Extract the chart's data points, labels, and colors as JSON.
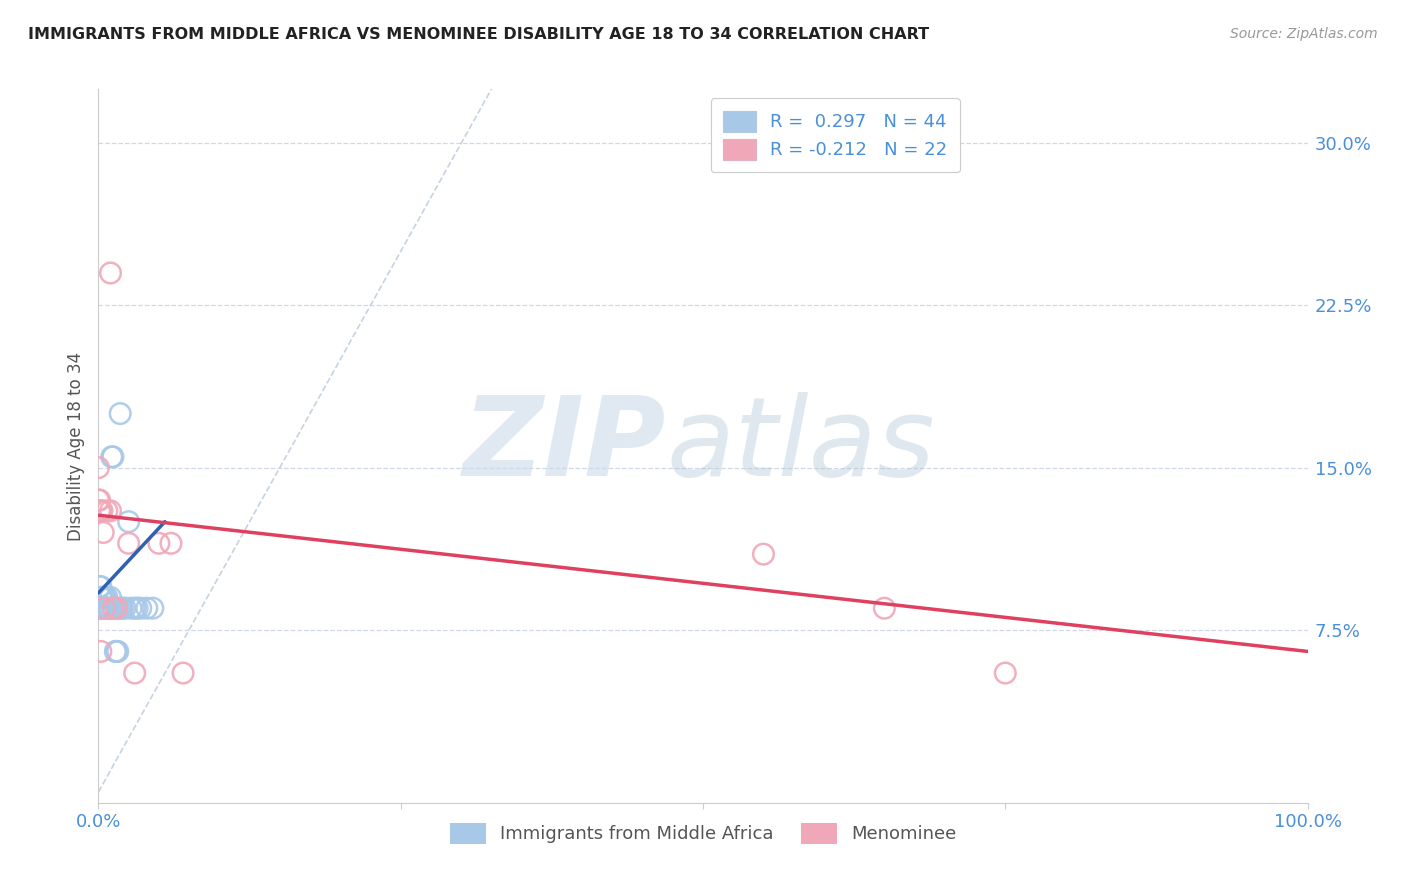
{
  "title": "IMMIGRANTS FROM MIDDLE AFRICA VS MENOMINEE DISABILITY AGE 18 TO 34 CORRELATION CHART",
  "source": "Source: ZipAtlas.com",
  "ylabel": "Disability Age 18 to 34",
  "xlim": [
    0.0,
    1.0
  ],
  "ylim": [
    0.0,
    0.32
  ],
  "y_ticks": [
    0.075,
    0.15,
    0.225,
    0.3
  ],
  "y_tick_labels": [
    "7.5%",
    "15.0%",
    "22.5%",
    "30.0%"
  ],
  "blue_color": "#a8c8e8",
  "pink_color": "#f0a8b8",
  "blue_line_color": "#3060b0",
  "pink_line_color": "#e04060",
  "diag_line_color": "#b8c8d8",
  "blue_scatter_x": [
    0.002,
    0.002,
    0.003,
    0.003,
    0.004,
    0.004,
    0.005,
    0.005,
    0.006,
    0.006,
    0.007,
    0.008,
    0.009,
    0.01,
    0.01,
    0.011,
    0.012,
    0.013,
    0.014,
    0.015,
    0.016,
    0.017,
    0.018,
    0.019,
    0.02,
    0.022,
    0.025,
    0.027,
    0.03,
    0.032,
    0.035,
    0.04,
    0.001,
    0.001,
    0.002,
    0.003,
    0.003,
    0.004,
    0.005,
    0.006,
    0.007,
    0.0,
    0.0,
    0.045
  ],
  "blue_scatter_y": [
    0.09,
    0.085,
    0.085,
    0.09,
    0.085,
    0.09,
    0.085,
    0.09,
    0.085,
    0.09,
    0.09,
    0.085,
    0.085,
    0.085,
    0.09,
    0.155,
    0.155,
    0.085,
    0.065,
    0.065,
    0.065,
    0.085,
    0.175,
    0.085,
    0.085,
    0.085,
    0.125,
    0.085,
    0.085,
    0.085,
    0.085,
    0.085,
    0.095,
    0.085,
    0.095,
    0.09,
    0.085,
    0.085,
    0.085,
    0.085,
    0.085,
    0.085,
    0.085,
    0.085
  ],
  "pink_scatter_x": [
    0.001,
    0.001,
    0.002,
    0.003,
    0.004,
    0.005,
    0.007,
    0.01,
    0.01,
    0.012,
    0.015,
    0.025,
    0.03,
    0.05,
    0.06,
    0.07,
    0.0,
    0.0,
    0.002,
    0.55,
    0.65,
    0.75
  ],
  "pink_scatter_y": [
    0.135,
    0.13,
    0.13,
    0.13,
    0.12,
    0.085,
    0.13,
    0.13,
    0.24,
    0.085,
    0.085,
    0.115,
    0.055,
    0.115,
    0.115,
    0.055,
    0.135,
    0.15,
    0.065,
    0.11,
    0.085,
    0.055
  ],
  "blue_trend_x": [
    0.0,
    0.055
  ],
  "blue_trend_y": [
    0.092,
    0.125
  ],
  "pink_trend_x": [
    0.0,
    1.0
  ],
  "pink_trend_y": [
    0.128,
    0.065
  ]
}
